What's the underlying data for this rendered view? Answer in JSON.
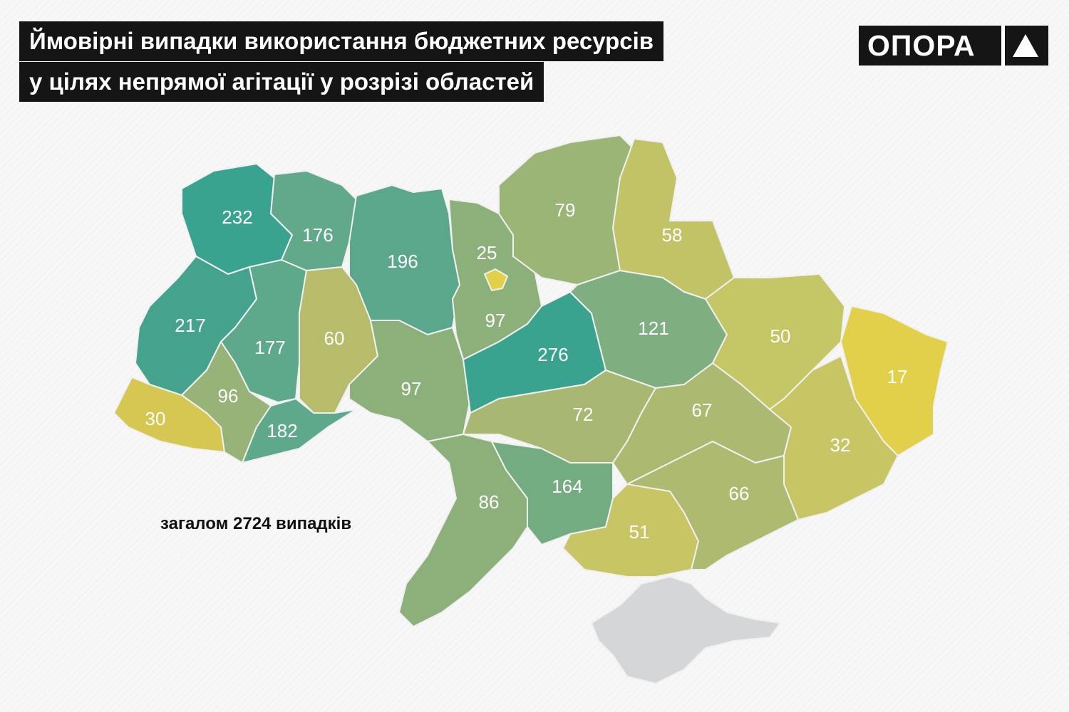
{
  "title": {
    "line1": "Ймовірні випадки використання бюджетних ресурсів",
    "line2": "у цілях непрямої агітації у розрізі областей"
  },
  "logo": {
    "text": "ОПОРА",
    "icon": "triangle-up-icon"
  },
  "total_label": "загалом 2724 випадків",
  "colors": {
    "high": "#3aa38f",
    "mid_high": "#62a98c",
    "mid": "#8cb07a",
    "low_mid": "#a8b772",
    "low": "#c8c564",
    "lowest": "#e3d04a",
    "no_data": "#d5d6d8"
  },
  "regions": [
    {
      "id": "volyn",
      "value": "232"
    },
    {
      "id": "rivne",
      "value": "176"
    },
    {
      "id": "zhytomyr",
      "value": "196"
    },
    {
      "id": "kyiv-oblast",
      "value": "25"
    },
    {
      "id": "kyiv-city",
      "value": ""
    },
    {
      "id": "chernihiv",
      "value": "79"
    },
    {
      "id": "sumy",
      "value": "58"
    },
    {
      "id": "lviv",
      "value": "217"
    },
    {
      "id": "ternopil",
      "value": "177"
    },
    {
      "id": "khmelnytskyi",
      "value": "60"
    },
    {
      "id": "vinnytsia",
      "value": "97"
    },
    {
      "id": "cherkasy",
      "value": "97"
    },
    {
      "id": "poltava",
      "value": "121"
    },
    {
      "id": "kharkiv",
      "value": "50"
    },
    {
      "id": "luhansk",
      "value": "17"
    },
    {
      "id": "zakarpattia",
      "value": "30"
    },
    {
      "id": "ivano-frankivsk",
      "value": "96"
    },
    {
      "id": "chernivtsi",
      "value": "182"
    },
    {
      "id": "kirovohrad",
      "value": "276"
    },
    {
      "id": "dnipropetrovsk",
      "value": "72"
    },
    {
      "id": "zaporizhzhia-north",
      "value": "67"
    },
    {
      "id": "donetsk",
      "value": "32"
    },
    {
      "id": "odesa",
      "value": "86"
    },
    {
      "id": "mykolaiv",
      "value": "164"
    },
    {
      "id": "kherson",
      "value": "51"
    },
    {
      "id": "zaporizhzhia",
      "value": "66"
    },
    {
      "id": "crimea",
      "value": ""
    }
  ]
}
